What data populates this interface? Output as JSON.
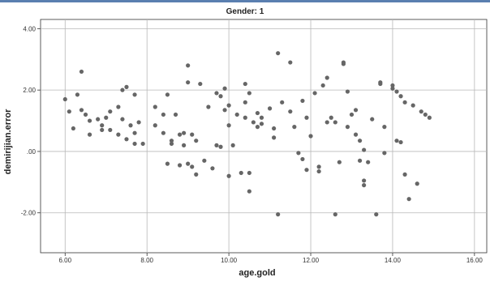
{
  "chart_data": {
    "type": "scatter",
    "title": "Gender: 1",
    "xlabel": "age.gold",
    "ylabel": "demirijian.error",
    "xlim": [
      5.4,
      16.3
    ],
    "ylim": [
      -3.3,
      4.3
    ],
    "xticks": [
      6,
      8,
      10,
      12,
      14,
      16
    ],
    "xtick_labels": [
      "6.00",
      "8.00",
      "10.00",
      "12.00",
      "14.00",
      "16.00"
    ],
    "yticks": [
      4,
      2,
      0,
      -2
    ],
    "ytick_labels": [
      "4.00",
      "2.00",
      ".00",
      "-2.00"
    ],
    "grid": true,
    "point_color": "#666666",
    "points": [
      [
        6.0,
        1.7
      ],
      [
        6.1,
        1.3
      ],
      [
        6.2,
        0.75
      ],
      [
        6.3,
        1.85
      ],
      [
        6.4,
        2.6
      ],
      [
        6.4,
        1.35
      ],
      [
        6.5,
        1.2
      ],
      [
        6.6,
        1.0
      ],
      [
        6.6,
        0.55
      ],
      [
        6.8,
        1.05
      ],
      [
        6.9,
        0.7
      ],
      [
        6.9,
        0.85
      ],
      [
        7.0,
        1.1
      ],
      [
        7.1,
        0.7
      ],
      [
        7.1,
        1.3
      ],
      [
        7.3,
        1.45
      ],
      [
        7.3,
        0.55
      ],
      [
        7.4,
        1.05
      ],
      [
        7.4,
        2.0
      ],
      [
        7.5,
        2.1
      ],
      [
        7.5,
        0.4
      ],
      [
        7.6,
        0.85
      ],
      [
        7.7,
        1.85
      ],
      [
        7.7,
        0.6
      ],
      [
        7.7,
        0.25
      ],
      [
        7.8,
        0.95
      ],
      [
        7.9,
        0.25
      ],
      [
        8.2,
        1.45
      ],
      [
        8.2,
        0.85
      ],
      [
        8.4,
        1.2
      ],
      [
        8.4,
        0.6
      ],
      [
        8.5,
        1.85
      ],
      [
        8.5,
        -0.4
      ],
      [
        8.6,
        0.25
      ],
      [
        8.6,
        0.35
      ],
      [
        8.7,
        1.2
      ],
      [
        8.8,
        0.55
      ],
      [
        8.8,
        -0.45
      ],
      [
        8.9,
        0.6
      ],
      [
        8.9,
        0.2
      ],
      [
        9.0,
        -0.4
      ],
      [
        9.0,
        2.8
      ],
      [
        9.0,
        2.25
      ],
      [
        9.1,
        0.55
      ],
      [
        9.1,
        -0.5
      ],
      [
        9.2,
        0.35
      ],
      [
        9.2,
        -0.75
      ],
      [
        9.3,
        2.2
      ],
      [
        9.4,
        -0.3
      ],
      [
        9.5,
        1.45
      ],
      [
        9.6,
        -0.55
      ],
      [
        9.7,
        1.9
      ],
      [
        9.7,
        0.2
      ],
      [
        9.8,
        0.15
      ],
      [
        9.8,
        1.8
      ],
      [
        9.9,
        2.05
      ],
      [
        9.9,
        1.35
      ],
      [
        10.0,
        0.85
      ],
      [
        10.0,
        1.5
      ],
      [
        10.0,
        -0.8
      ],
      [
        10.1,
        0.2
      ],
      [
        10.2,
        1.2
      ],
      [
        10.3,
        -0.7
      ],
      [
        10.4,
        1.6
      ],
      [
        10.4,
        2.2
      ],
      [
        10.4,
        1.1
      ],
      [
        10.5,
        1.9
      ],
      [
        10.5,
        -0.7
      ],
      [
        10.5,
        -1.3
      ],
      [
        10.6,
        0.95
      ],
      [
        10.7,
        1.25
      ],
      [
        10.7,
        0.8
      ],
      [
        10.8,
        0.9
      ],
      [
        10.8,
        1.1
      ],
      [
        11.0,
        1.4
      ],
      [
        11.1,
        0.75
      ],
      [
        11.1,
        0.45
      ],
      [
        11.2,
        3.2
      ],
      [
        11.2,
        -2.05
      ],
      [
        11.3,
        1.6
      ],
      [
        11.5,
        2.9
      ],
      [
        11.5,
        1.3
      ],
      [
        11.6,
        0.8
      ],
      [
        11.7,
        -0.05
      ],
      [
        11.8,
        1.65
      ],
      [
        11.8,
        -0.25
      ],
      [
        11.9,
        1.1
      ],
      [
        11.9,
        -0.6
      ],
      [
        12.0,
        0.5
      ],
      [
        12.1,
        1.9
      ],
      [
        12.2,
        -0.5
      ],
      [
        12.2,
        -0.65
      ],
      [
        12.3,
        2.15
      ],
      [
        12.4,
        2.4
      ],
      [
        12.4,
        0.95
      ],
      [
        12.5,
        1.1
      ],
      [
        12.6,
        -2.05
      ],
      [
        12.6,
        0.95
      ],
      [
        12.7,
        -0.35
      ],
      [
        12.8,
        2.9
      ],
      [
        12.8,
        2.85
      ],
      [
        12.9,
        1.95
      ],
      [
        12.9,
        0.8
      ],
      [
        13.0,
        1.2
      ],
      [
        13.1,
        0.55
      ],
      [
        13.1,
        1.35
      ],
      [
        13.2,
        0.35
      ],
      [
        13.2,
        -0.3
      ],
      [
        13.3,
        -0.95
      ],
      [
        13.3,
        -1.1
      ],
      [
        13.3,
        0.05
      ],
      [
        13.4,
        -0.35
      ],
      [
        13.5,
        1.05
      ],
      [
        13.6,
        -2.05
      ],
      [
        13.7,
        2.25
      ],
      [
        13.7,
        2.2
      ],
      [
        13.8,
        0.8
      ],
      [
        13.8,
        -0.05
      ],
      [
        14.0,
        2.15
      ],
      [
        14.0,
        2.05
      ],
      [
        14.1,
        1.95
      ],
      [
        14.1,
        0.35
      ],
      [
        14.2,
        1.8
      ],
      [
        14.2,
        0.3
      ],
      [
        14.3,
        -0.75
      ],
      [
        14.3,
        1.6
      ],
      [
        14.4,
        -1.55
      ],
      [
        14.5,
        1.5
      ],
      [
        14.6,
        -1.05
      ],
      [
        14.7,
        1.3
      ],
      [
        14.8,
        1.2
      ],
      [
        14.9,
        1.1
      ]
    ]
  }
}
